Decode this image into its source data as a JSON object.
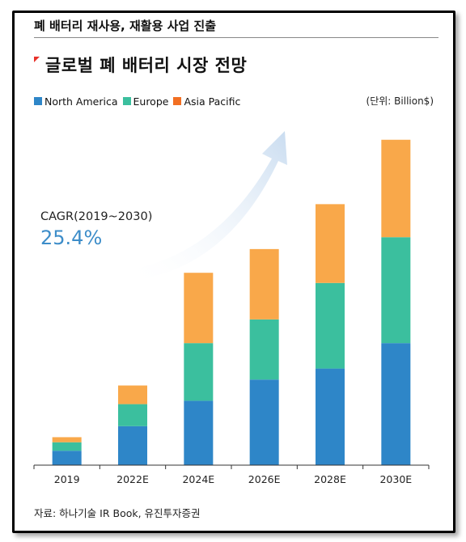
{
  "header": {
    "title": "폐 배터리 재사용, 재활용 사업 진출"
  },
  "chart_data": {
    "type": "bar",
    "stacked": true,
    "title": "글로벌 폐 배터리 시장 전망",
    "unit_label": "(단위: Billion$)",
    "categories": [
      "2019",
      "2022E",
      "2024E",
      "2026E",
      "2028E",
      "2030E"
    ],
    "series": [
      {
        "name": "North America",
        "color": "#2e86c8",
        "values": [
          1.7,
          4.6,
          7.6,
          10.1,
          11.4,
          14.4
        ]
      },
      {
        "name": "Europe",
        "color": "#3bbf9e",
        "values": [
          1.0,
          2.6,
          6.8,
          7.1,
          10.1,
          12.5
        ]
      },
      {
        "name": "Asia Pacific",
        "color": "#f9a84a",
        "values": [
          0.6,
          2.2,
          8.3,
          8.3,
          9.3,
          11.5
        ]
      }
    ],
    "ylim": [
      0,
      40
    ],
    "grid": false,
    "legend_position": "top-left",
    "annotation": {
      "label": "CAGR(2019~2030)",
      "value": "25.4%"
    }
  },
  "source": "자료: 하나기술 IR Book, 유진투자증권"
}
